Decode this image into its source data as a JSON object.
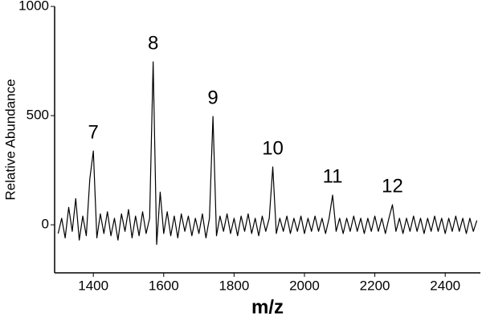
{
  "chart_data": {
    "type": "line",
    "x_label": "m/z",
    "y_label": "Relative Abundance",
    "xlim": [
      1290,
      2500
    ],
    "xticks": [
      1400,
      1600,
      1800,
      2000,
      2200,
      2400
    ],
    "ylim": [
      -220,
      1000
    ],
    "yticks": [
      0,
      500,
      1000
    ],
    "series": [
      {
        "color": "#000000",
        "x": [
          1300,
          1310,
          1320,
          1330,
          1340,
          1350,
          1360,
          1370,
          1380,
          1390,
          1400,
          1410,
          1420,
          1430,
          1440,
          1450,
          1460,
          1470,
          1480,
          1490,
          1500,
          1510,
          1520,
          1530,
          1540,
          1550,
          1560,
          1570,
          1580,
          1590,
          1600,
          1610,
          1620,
          1630,
          1640,
          1650,
          1660,
          1670,
          1680,
          1690,
          1700,
          1710,
          1720,
          1730,
          1740,
          1750,
          1760,
          1770,
          1780,
          1790,
          1800,
          1810,
          1820,
          1830,
          1840,
          1850,
          1860,
          1870,
          1880,
          1890,
          1900,
          1910,
          1920,
          1930,
          1940,
          1950,
          1960,
          1970,
          1980,
          1990,
          2000,
          2010,
          2020,
          2030,
          2040,
          2050,
          2060,
          2070,
          2080,
          2090,
          2100,
          2110,
          2120,
          2130,
          2140,
          2150,
          2160,
          2170,
          2180,
          2190,
          2200,
          2210,
          2220,
          2230,
          2240,
          2250,
          2260,
          2270,
          2280,
          2290,
          2300,
          2310,
          2320,
          2330,
          2340,
          2350,
          2360,
          2370,
          2380,
          2390,
          2400,
          2410,
          2420,
          2430,
          2440,
          2450,
          2460,
          2470,
          2480,
          2490
        ],
        "values": [
          -40,
          30,
          -60,
          80,
          -30,
          120,
          -70,
          40,
          -50,
          210,
          338,
          -60,
          50,
          -40,
          60,
          -50,
          30,
          -70,
          50,
          -30,
          70,
          -60,
          40,
          -50,
          60,
          -40,
          30,
          746,
          -90,
          150,
          -40,
          60,
          -50,
          40,
          -60,
          50,
          -30,
          40,
          -50,
          30,
          -40,
          50,
          -60,
          30,
          496,
          -50,
          40,
          -30,
          50,
          -40,
          30,
          -50,
          40,
          -30,
          50,
          -40,
          30,
          -50,
          40,
          -30,
          30,
          265,
          -40,
          30,
          -30,
          40,
          -40,
          30,
          -30,
          40,
          -40,
          30,
          -30,
          40,
          -30,
          30,
          -40,
          30,
          136,
          -30,
          30,
          -40,
          30,
          -30,
          40,
          -30,
          30,
          -40,
          30,
          -30,
          40,
          -30,
          30,
          -40,
          30,
          92,
          -30,
          30,
          -40,
          30,
          -30,
          40,
          -30,
          30,
          -40,
          30,
          -30,
          40,
          -30,
          30,
          -40,
          30,
          -30,
          40,
          -30,
          30,
          -40,
          30,
          -30,
          20
        ]
      }
    ],
    "annotations": [
      {
        "text": "7",
        "x": 1400,
        "y": 338
      },
      {
        "text": "8",
        "x": 1570,
        "y": 746
      },
      {
        "text": "9",
        "x": 1740,
        "y": 496
      },
      {
        "text": "10",
        "x": 1910,
        "y": 265
      },
      {
        "text": "11",
        "x": 2080,
        "y": 136
      },
      {
        "text": "12",
        "x": 2250,
        "y": 92
      }
    ]
  }
}
